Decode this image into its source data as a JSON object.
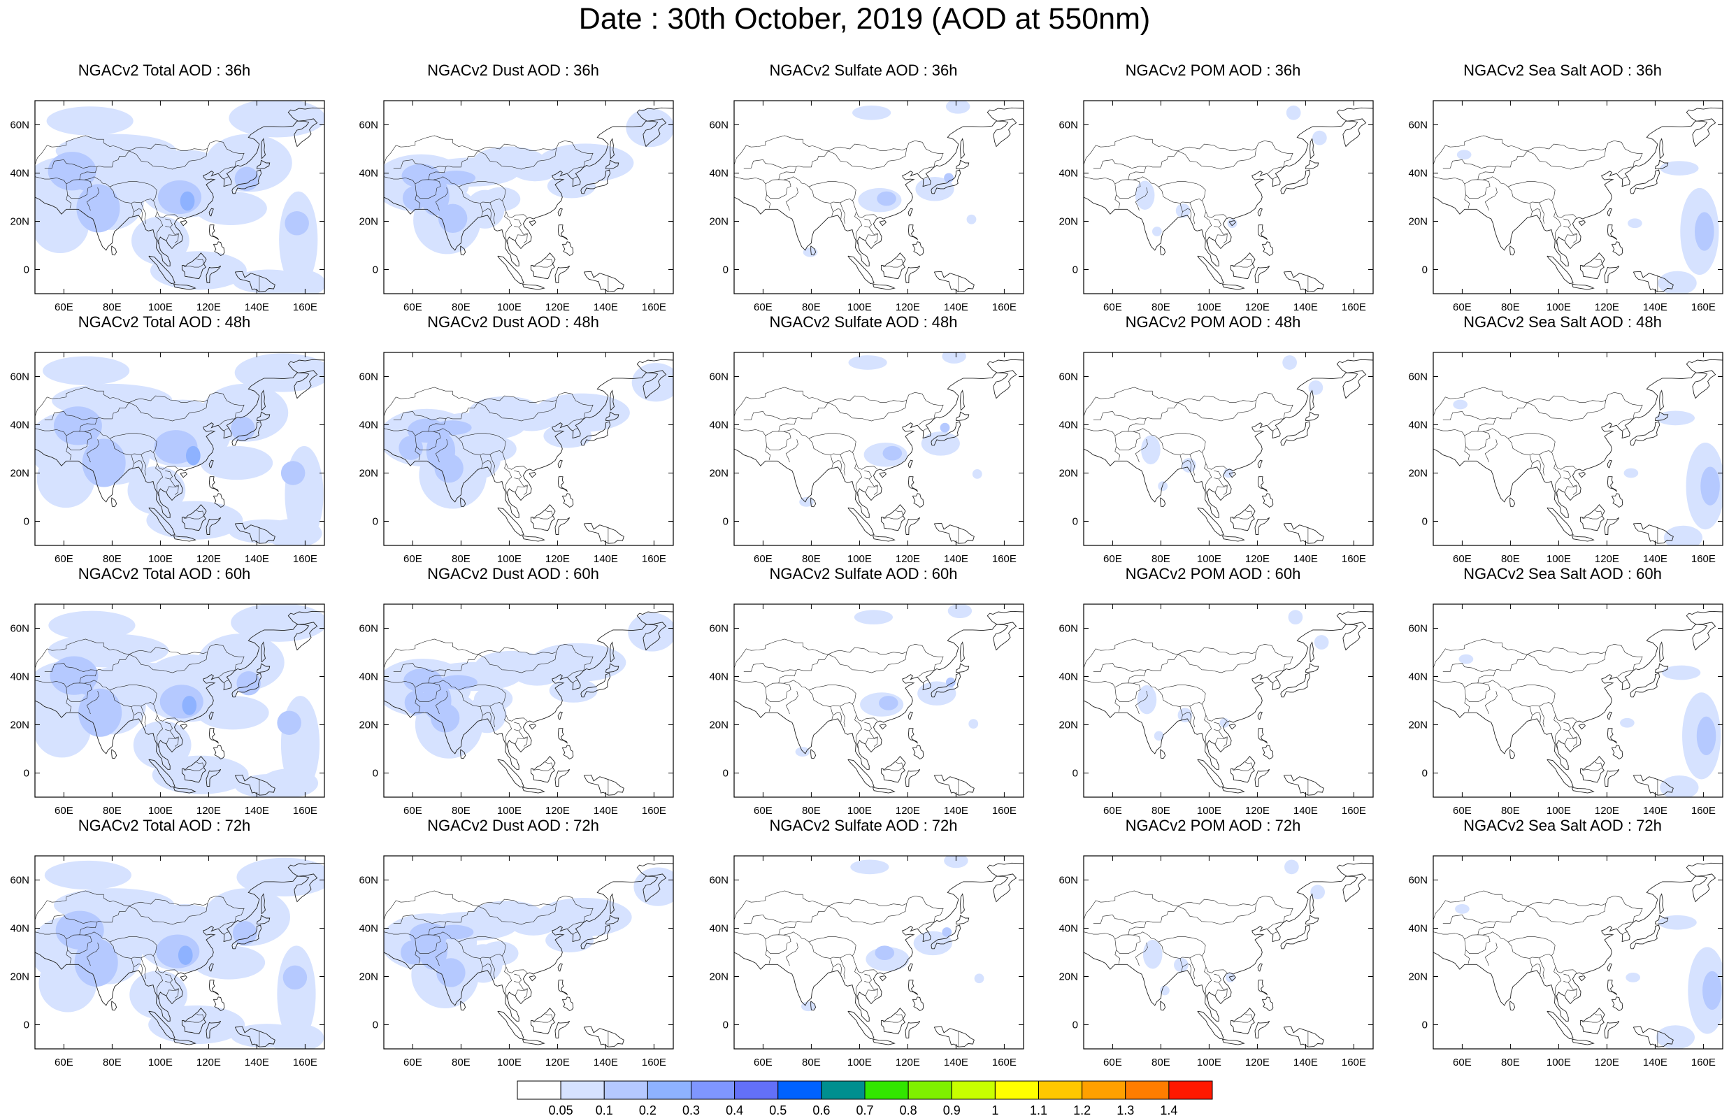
{
  "title": "Date : 30th October, 2019 (AOD at 550nm)",
  "axes": {
    "lon_range": [
      48,
      168
    ],
    "lat_range": [
      -10,
      70
    ],
    "lon_ticks": [
      60,
      80,
      100,
      120,
      140,
      160
    ],
    "lon_labels": [
      "60E",
      "80E",
      "100E",
      "120E",
      "140E",
      "160E"
    ],
    "lat_ticks": [
      0,
      20,
      40,
      60
    ],
    "lat_labels": [
      "0",
      "20N",
      "40N",
      "60N"
    ]
  },
  "panels": [
    [
      "NGACv2 Total AOD : 36h",
      "NGACv2 Dust AOD : 36h",
      "NGACv2 Sulfate AOD : 36h",
      "NGACv2 POM AOD : 36h",
      "NGACv2 Sea Salt AOD : 36h"
    ],
    [
      "NGACv2 Total AOD : 48h",
      "NGACv2 Dust AOD : 48h",
      "NGACv2 Sulfate AOD : 48h",
      "NGACv2 POM AOD : 48h",
      "NGACv2 Sea Salt AOD : 48h"
    ],
    [
      "NGACv2 Total AOD : 60h",
      "NGACv2 Dust AOD : 60h",
      "NGACv2 Sulfate AOD : 60h",
      "NGACv2 POM AOD : 60h",
      "NGACv2 Sea Salt AOD : 60h"
    ],
    [
      "NGACv2 Total AOD : 72h",
      "NGACv2 Dust AOD : 72h",
      "NGACv2 Sulfate AOD : 72h",
      "NGACv2 POM AOD : 72h",
      "NGACv2 Sea Salt  AOD : 72h"
    ]
  ],
  "colorbar": {
    "labels": [
      "0.05",
      "0.1",
      "0.2",
      "0.3",
      "0.4",
      "0.5",
      "0.6",
      "0.7",
      "0.8",
      "0.9",
      "1",
      "1.1",
      "1.2",
      "1.3",
      "1.4"
    ],
    "colors": [
      "#ffffff",
      "#d6e2ff",
      "#b5c9ff",
      "#8eb2ff",
      "#7f96ff",
      "#6370f8",
      "#0062ff",
      "#008f8f",
      "#32e600",
      "#7ff000",
      "#c8ff00",
      "#ffff00",
      "#ffc800",
      "#ffa000",
      "#ff7d00",
      "#ff1900"
    ]
  },
  "aod_colors": {
    "low": "#d6e2ff",
    "mid": "#b5c9ff",
    "high": "#8eb2ff",
    "peak": "#7f96ff"
  }
}
